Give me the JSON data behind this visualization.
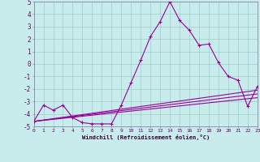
{
  "xlabel": "Windchill (Refroidissement éolien,°C)",
  "bg_color": "#c8ecec",
  "grid_color": "#b0d8d8",
  "line_color": "#990099",
  "xlim": [
    0,
    23
  ],
  "ylim": [
    -5,
    5
  ],
  "xticks": [
    0,
    1,
    2,
    3,
    4,
    5,
    6,
    7,
    8,
    9,
    10,
    11,
    12,
    13,
    14,
    15,
    16,
    17,
    18,
    19,
    20,
    21,
    22,
    23
  ],
  "yticks": [
    -5,
    -4,
    -3,
    -2,
    -1,
    0,
    1,
    2,
    3,
    4,
    5
  ],
  "series1_x": [
    0,
    1,
    2,
    3,
    4,
    5,
    6,
    7,
    8,
    9,
    10,
    11,
    12,
    13,
    14,
    15,
    16,
    17,
    18,
    19,
    20,
    21,
    22,
    23
  ],
  "series1_y": [
    -4.6,
    -3.3,
    -3.7,
    -3.3,
    -4.3,
    -4.7,
    -4.8,
    -4.8,
    -4.8,
    -3.3,
    -1.5,
    0.3,
    2.2,
    3.4,
    5.0,
    3.5,
    2.7,
    1.5,
    1.6,
    0.1,
    -1.0,
    -1.3,
    -3.4,
    -1.8
  ],
  "series2_x": [
    0,
    23
  ],
  "series2_y": [
    -4.6,
    -2.1
  ],
  "series3_x": [
    0,
    23
  ],
  "series3_y": [
    -4.6,
    -2.4
  ],
  "series4_x": [
    0,
    23
  ],
  "series4_y": [
    -4.6,
    -2.7
  ]
}
